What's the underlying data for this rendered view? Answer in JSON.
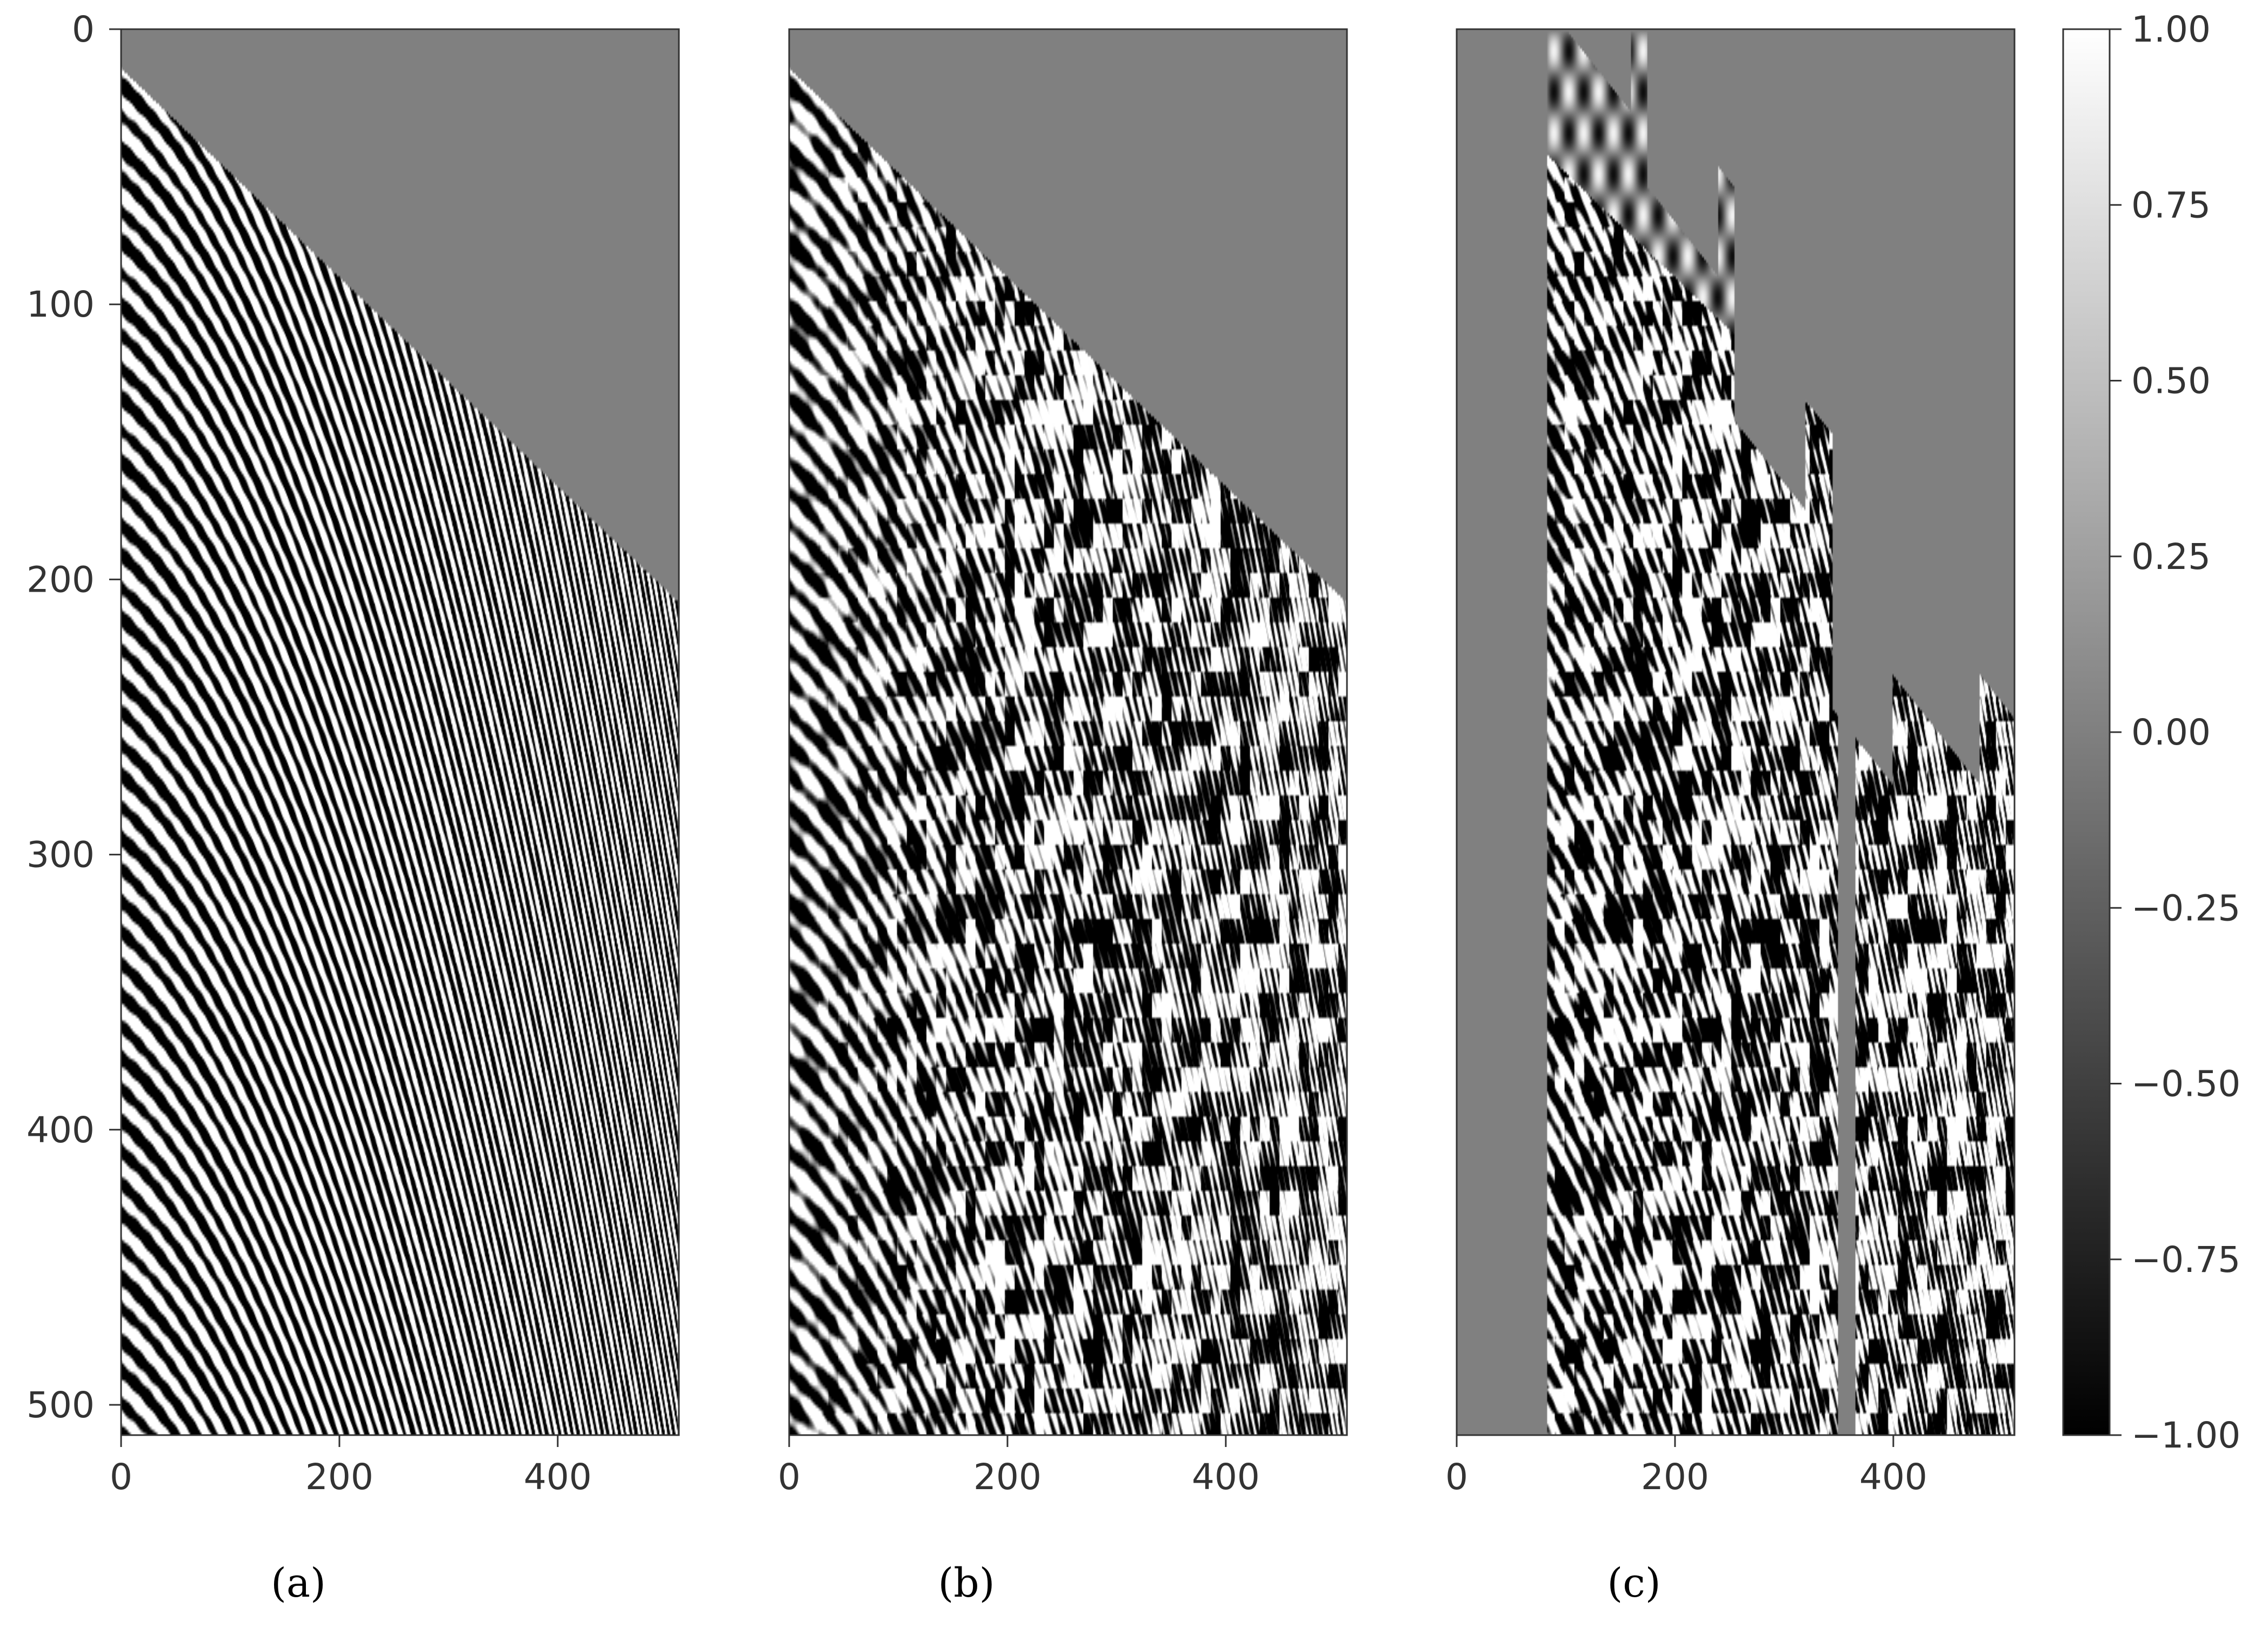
{
  "chart_data": [
    {
      "type": "heatmap",
      "panel_label": "(a)",
      "caption_letter": "a",
      "pattern": "full",
      "xlim": [
        0,
        511
      ],
      "ylim": [
        511,
        0
      ],
      "xticks": [
        0,
        200,
        400
      ],
      "xtick_labels": [
        "0",
        "200",
        "400"
      ],
      "yticks": [
        0,
        100,
        200,
        300,
        400,
        500
      ],
      "ytick_labels": [
        "0",
        "100",
        "200",
        "300",
        "400",
        "500"
      ]
    },
    {
      "type": "heatmap",
      "panel_label": "(b)",
      "caption_letter": "b",
      "pattern": "noisy",
      "xlim": [
        0,
        511
      ],
      "ylim": [
        511,
        0
      ],
      "xticks": [
        0,
        200,
        400
      ],
      "xtick_labels": [
        "0",
        "200",
        "400"
      ]
    },
    {
      "type": "heatmap",
      "panel_label": "(c)",
      "caption_letter": "c",
      "pattern": "masked",
      "xlim": [
        0,
        511
      ],
      "ylim": [
        511,
        0
      ],
      "xticks": [
        0,
        200,
        400
      ],
      "xtick_labels": [
        "0",
        "200",
        "400"
      ],
      "masked_traces": [
        [
          0,
          82
        ],
        [
          350,
          365
        ]
      ]
    }
  ],
  "colorbar": {
    "colormap": "gray",
    "min": -1.0,
    "max": 1.0,
    "ticks": [
      1.0,
      0.75,
      0.5,
      0.25,
      0.0,
      -0.25,
      -0.5,
      -0.75,
      -1.0
    ],
    "tick_labels": [
      "1.00",
      "0.75",
      "0.50",
      "0.25",
      "0.00",
      "−0.25",
      "−0.50",
      "−0.75",
      "−1.00"
    ],
    "min_color": "#000000",
    "max_color": "#ffffff"
  },
  "colors": {
    "zero_gray": "#808080",
    "axis": "#333333",
    "text": "#333333"
  }
}
